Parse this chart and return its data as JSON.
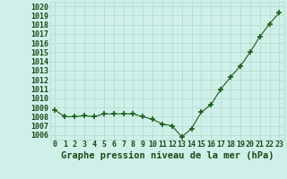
{
  "x": [
    0,
    1,
    2,
    3,
    4,
    5,
    6,
    7,
    8,
    9,
    10,
    11,
    12,
    13,
    14,
    15,
    16,
    17,
    18,
    19,
    20,
    21,
    22,
    23
  ],
  "y": [
    1008.7,
    1008.0,
    1008.0,
    1008.1,
    1008.0,
    1008.3,
    1008.3,
    1008.3,
    1008.3,
    1008.0,
    1007.7,
    1007.2,
    1007.0,
    1005.8,
    1006.7,
    1008.5,
    1009.3,
    1011.0,
    1012.3,
    1013.5,
    1015.0,
    1016.7,
    1018.1,
    1019.3
  ],
  "line_color": "#1a5e1a",
  "marker_color": "#1a5e1a",
  "bg_color": "#cff0e8",
  "grid_color": "#b0d8cc",
  "title": "Graphe pression niveau de la mer (hPa)",
  "ylim": [
    1005.5,
    1020.5
  ],
  "yticks": [
    1006,
    1007,
    1008,
    1009,
    1010,
    1011,
    1012,
    1013,
    1014,
    1015,
    1016,
    1017,
    1018,
    1019,
    1020
  ],
  "xticks": [
    0,
    1,
    2,
    3,
    4,
    5,
    6,
    7,
    8,
    9,
    10,
    11,
    12,
    13,
    14,
    15,
    16,
    17,
    18,
    19,
    20,
    21,
    22,
    23
  ],
  "xlim": [
    -0.5,
    23.5
  ],
  "title_fontsize": 7.5,
  "tick_fontsize": 6,
  "title_color": "#1a4a1a",
  "tick_color": "#1a4a1a",
  "figsize": [
    3.2,
    2.0
  ],
  "dpi": 100
}
